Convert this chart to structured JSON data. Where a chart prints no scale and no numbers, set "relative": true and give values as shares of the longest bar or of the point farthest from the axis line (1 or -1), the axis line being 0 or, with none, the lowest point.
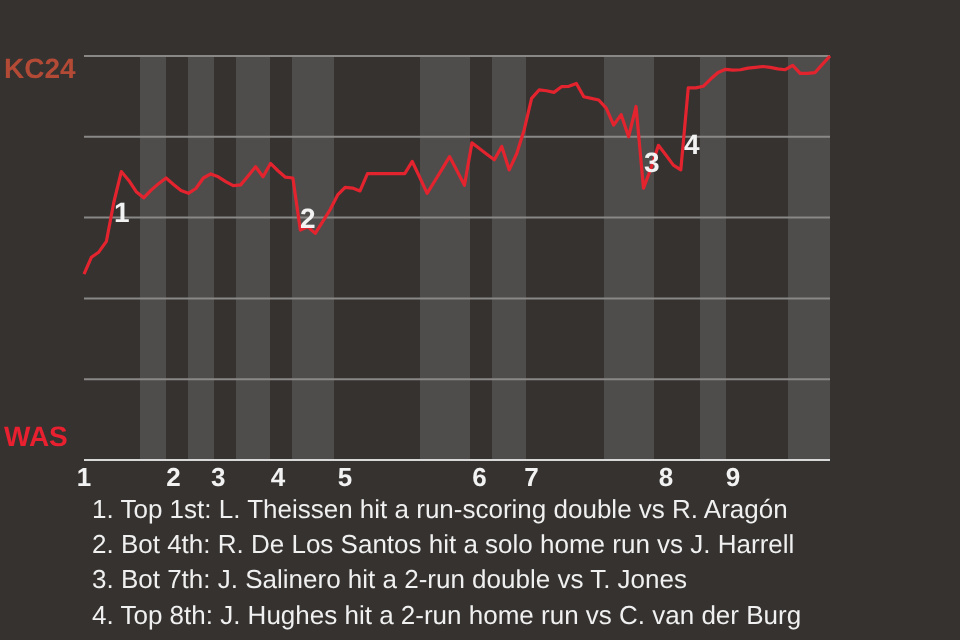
{
  "chart_data": {
    "type": "line",
    "categories": [
      "1",
      null,
      null,
      null,
      null,
      null,
      null,
      null,
      null,
      null,
      null,
      null,
      "2",
      null,
      null,
      null,
      null,
      null,
      "3",
      null,
      null,
      null,
      null,
      null,
      null,
      null,
      "4",
      null,
      null,
      null,
      null,
      null,
      null,
      null,
      null,
      "5",
      null,
      null,
      null,
      null,
      null,
      null,
      null,
      null,
      null,
      null,
      null,
      null,
      null,
      null,
      null,
      null,
      null,
      "6",
      null,
      null,
      null,
      null,
      null,
      null,
      "7",
      null,
      null,
      null,
      null,
      null,
      null,
      null,
      null,
      null,
      null,
      null,
      null,
      null,
      null,
      null,
      null,
      null,
      "8",
      null,
      null,
      null,
      null,
      null,
      null,
      null,
      null,
      "9",
      null,
      null,
      null,
      null,
      null,
      null,
      null,
      null,
      null,
      null,
      null,
      null,
      null
    ],
    "relative": true,
    "series": [
      {
        "color": "#e3242f",
        "values": [
          0.46,
          0.502,
          0.515,
          0.541,
          0.638,
          0.714,
          0.692,
          0.664,
          0.649,
          0.668,
          0.684,
          0.698,
          0.682,
          0.667,
          0.66,
          0.672,
          0.698,
          0.708,
          0.701,
          0.689,
          0.679,
          0.681,
          0.703,
          0.726,
          0.701,
          0.734,
          0.716,
          0.7,
          0.698,
          0.569,
          0.577,
          0.561,
          0.59,
          0.62,
          0.656,
          0.675,
          0.673,
          0.666,
          0.709,
          0.709,
          0.709,
          0.709,
          0.709,
          0.709,
          0.739,
          0.7,
          0.66,
          0.69,
          0.72,
          0.751,
          0.716,
          0.68,
          0.785,
          0.771,
          0.757,
          0.743,
          0.776,
          0.718,
          0.758,
          0.817,
          0.895,
          0.916,
          0.914,
          0.91,
          0.924,
          0.925,
          0.932,
          0.899,
          0.895,
          0.891,
          0.871,
          0.829,
          0.855,
          0.8,
          0.875,
          0.673,
          0.722,
          0.779,
          0.755,
          0.73,
          0.718,
          0.921,
          0.921,
          0.925,
          0.943,
          0.959,
          0.967,
          0.965,
          0.966,
          0.97,
          0.972,
          0.974,
          0.972,
          0.968,
          0.966,
          0.977,
          0.957,
          0.957,
          0.959,
          0.98,
          1.0
        ]
      }
    ],
    "grid": "y",
    "marker": "none",
    "annotations": [
      "KC24",
      "WAS",
      "1",
      "2",
      "3",
      "4",
      "1. Top 1st: L. Theissen hit a run-scoring double vs R. Aragón",
      "2. Bot 4th: R. De Los Santos hit a solo home run vs J. Harrell",
      "3. Bot 7th: J. Salinero hit a 2-run double vs T. Jones",
      "4. Top 8th: J. Hughes hit a 2-run home run vs C. van der Burg"
    ]
  }
}
